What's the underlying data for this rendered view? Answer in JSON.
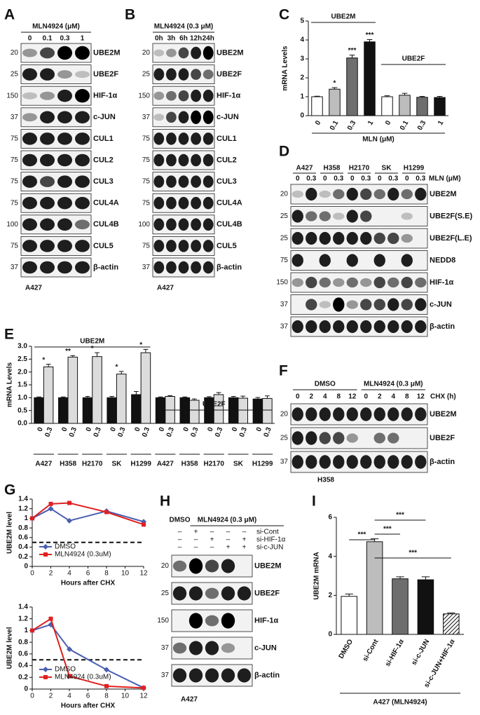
{
  "panel_labels": [
    "A",
    "B",
    "C",
    "D",
    "E",
    "F",
    "G",
    "H",
    "I"
  ],
  "blots": {
    "A": {
      "treatment": "MLN4924 (μM)",
      "lanes": [
        "0",
        "0.1",
        "0.3",
        "1"
      ],
      "cell_line": "A427",
      "rows": [
        {
          "mw": 20,
          "name": "UBE2M"
        },
        {
          "mw": 25,
          "name": "UBE2F"
        },
        {
          "mw": 150,
          "name": "HIF-1α"
        },
        {
          "mw": 37,
          "name": "c-JUN"
        },
        {
          "mw": 75,
          "name": "CUL1"
        },
        {
          "mw": 75,
          "name": "CUL2"
        },
        {
          "mw": 75,
          "name": "CUL3"
        },
        {
          "mw": 75,
          "name": "CUL4A"
        },
        {
          "mw": 100,
          "name": "CUL4B"
        },
        {
          "mw": 75,
          "name": "CUL5"
        },
        {
          "mw": 37,
          "name": "β-actin"
        }
      ]
    },
    "B": {
      "treatment": "MLN4924 (0.3 μM)",
      "lanes": [
        "0h",
        "3h",
        "6h",
        "12h",
        "24h"
      ],
      "cell_line": "A427",
      "rows": [
        {
          "mw": 20,
          "name": "UBE2M"
        },
        {
          "mw": 25,
          "name": "UBE2F"
        },
        {
          "mw": 150,
          "name": "HIF-1α"
        },
        {
          "mw": 37,
          "name": "c-JUN"
        },
        {
          "mw": 75,
          "name": "CUL1"
        },
        {
          "mw": 75,
          "name": "CUL2"
        },
        {
          "mw": 75,
          "name": "CUL3"
        },
        {
          "mw": 75,
          "name": "CUL4A"
        },
        {
          "mw": 100,
          "name": "CUL4B"
        },
        {
          "mw": 75,
          "name": "CUL5"
        },
        {
          "mw": 37,
          "name": "β-actin"
        }
      ]
    },
    "D": {
      "treatment": "MLN (μM)",
      "cell_lines": [
        "A427",
        "H358",
        "H2170",
        "SK",
        "H1299"
      ],
      "lanes": [
        "0",
        "0.3"
      ],
      "rows": [
        {
          "mw": 20,
          "name": "UBE2M"
        },
        {
          "mw": 25,
          "name": "UBE2F(S.E)"
        },
        {
          "mw": 25,
          "name": "UBE2F(L.E)"
        },
        {
          "mw": 75,
          "name": "NEDD8"
        },
        {
          "mw": 150,
          "name": "HIF-1α"
        },
        {
          "mw": 37,
          "name": "c-JUN"
        },
        {
          "mw": 37,
          "name": "β-actin"
        }
      ]
    },
    "F": {
      "groups": [
        "DMSO",
        "MLN4924 (0.3 μM)"
      ],
      "treatment": "CHX (h)",
      "lanes": [
        "0",
        "2",
        "4",
        "8",
        "12"
      ],
      "cell_line": "H358",
      "rows": [
        {
          "mw": 20,
          "name": "UBE2M"
        },
        {
          "mw": 25,
          "name": "UBE2F"
        },
        {
          "mw": 37,
          "name": "β-actin"
        }
      ]
    },
    "H": {
      "groups": [
        "DMSO",
        "MLN4924 (0.3 μM)"
      ],
      "cell_line": "A427",
      "conditions": [
        {
          "name": "si-Cont",
          "signs": [
            "–",
            "+",
            "–",
            "–",
            "–"
          ]
        },
        {
          "name": "si-HIF-1α",
          "signs": [
            "–",
            "–",
            "+",
            "–",
            "+"
          ]
        },
        {
          "name": "si-c-JUN",
          "signs": [
            "–",
            "–",
            "–",
            "+",
            "+"
          ]
        }
      ],
      "rows": [
        {
          "mw": 20,
          "name": "UBE2M"
        },
        {
          "mw": 25,
          "name": "UBE2F"
        },
        {
          "mw": 150,
          "name": "HIF-1α"
        },
        {
          "mw": 37,
          "name": "c-JUN"
        },
        {
          "mw": 37,
          "name": "β-actin"
        }
      ]
    }
  },
  "chart_data": [
    {
      "type": "bar",
      "ylabel": "mRNA Levels",
      "xlabel": "MLN (μM)",
      "categories": [
        "0",
        "0.1",
        "0.3",
        "1",
        "0",
        "0.1",
        "0.3",
        "1"
      ],
      "values": [
        1.0,
        1.4,
        3.05,
        3.9,
        1.0,
        1.08,
        0.97,
        0.96
      ],
      "errors": [
        0.03,
        0.08,
        0.15,
        0.12,
        0.05,
        0.1,
        0.05,
        0.06
      ],
      "colors": [
        "#ffffff",
        "#bdbdbd",
        "#6e6e6e",
        "#111111",
        "#ffffff",
        "#bdbdbd",
        "#6e6e6e",
        "#111111"
      ],
      "significance": [
        null,
        "*",
        "***",
        "***",
        null,
        null,
        null,
        null
      ],
      "group_labels": [
        "UBE2M",
        "UBE2F"
      ],
      "ylim": [
        0,
        5
      ],
      "yticks": [
        0,
        1,
        2,
        3,
        4,
        5
      ]
    },
    {
      "type": "bar",
      "ylabel": "mRNA Levels",
      "categories": [
        "A427",
        "H358",
        "H2170",
        "SK",
        "H1299",
        "A427",
        "H358",
        "H2170",
        "SK",
        "H1299"
      ],
      "series": [
        {
          "name": "0",
          "color": "#111111",
          "values": [
            1.0,
            1.0,
            1.0,
            1.0,
            1.12,
            1.0,
            1.0,
            1.0,
            1.0,
            0.95
          ],
          "errors": [
            0.03,
            0.03,
            0.05,
            0.05,
            0.12,
            0.03,
            0.03,
            0.04,
            0.05,
            0.06
          ]
        },
        {
          "name": "0.3",
          "color": "#dcdcdc",
          "values": [
            2.2,
            2.58,
            2.6,
            1.92,
            2.75,
            1.05,
            0.9,
            1.12,
            0.98,
            0.97
          ],
          "errors": [
            0.1,
            0.06,
            0.15,
            0.1,
            0.13,
            0.03,
            0.05,
            0.08,
            0.08,
            0.1
          ]
        }
      ],
      "significance": [
        "*",
        "**",
        "*",
        "*",
        "*",
        null,
        null,
        null,
        null,
        null
      ],
      "group_labels": [
        "UBE2M",
        "UBE2F"
      ],
      "ylim": [
        0,
        3
      ],
      "yticks": [
        {
          "value": 0,
          "label": "0.0"
        },
        {
          "value": 0.5,
          "label": "0.5"
        },
        {
          "value": 1,
          "label": "1.0"
        },
        {
          "value": 1.5,
          "label": "1.5"
        },
        {
          "value": 2,
          "label": "2.0"
        },
        {
          "value": 2.5,
          "label": "2.5"
        },
        {
          "value": 3,
          "label": "3.0"
        }
      ]
    },
    {
      "type": "line",
      "ylabel": "UBE2M level",
      "xlabel": "Hours after CHX",
      "x": [
        0,
        2,
        4,
        8,
        12
      ],
      "series": [
        {
          "name": "DMSO",
          "color": "#4a5fb0",
          "marker": "diamond",
          "values": [
            1.0,
            1.2,
            0.95,
            1.15,
            0.93
          ]
        },
        {
          "name": "MLN4924 (0.3uM)",
          "color": "#e02020",
          "marker": "square",
          "values": [
            1.0,
            1.3,
            1.32,
            1.13,
            0.87
          ]
        }
      ],
      "reference_line": 0.5,
      "legend": "lower left",
      "xlim": [
        0,
        12
      ],
      "xticks": [
        0,
        2,
        4,
        6,
        8,
        10,
        12
      ],
      "ylim": [
        0,
        1.4
      ],
      "yticks": [
        0,
        0.2,
        0.4,
        0.6,
        0.8,
        1,
        1.2,
        1.4
      ]
    },
    {
      "type": "line",
      "ylabel": "UBE2M level",
      "xlabel": "Hours after CHX",
      "x": [
        0,
        2,
        4,
        8,
        12
      ],
      "series": [
        {
          "name": "DMSO",
          "color": "#4a5fb0",
          "marker": "diamond",
          "values": [
            1.0,
            1.1,
            0.68,
            0.33,
            0.02
          ]
        },
        {
          "name": "MLN4924 (0.3uM)",
          "color": "#e02020",
          "marker": "square",
          "values": [
            1.0,
            1.2,
            0.22,
            0.05,
            0.02
          ]
        }
      ],
      "reference_line": 0.5,
      "legend": "lower left",
      "xlim": [
        0,
        12
      ],
      "xticks": [
        0,
        2,
        4,
        6,
        8,
        10,
        12
      ],
      "ylim": [
        0,
        1.4
      ],
      "yticks": [
        0,
        0.2,
        0.4,
        0.6,
        0.8,
        1,
        1.2,
        1.4
      ]
    },
    {
      "type": "bar",
      "ylabel": "UBE2M mRNA",
      "xlabel": "A427 (MLN4924)",
      "categories": [
        "DMSO",
        "si-Cont",
        "si-HIF-1α",
        "si-c-JUN",
        "si-c-JUN+HIF-1α"
      ],
      "values": [
        1.95,
        4.75,
        2.85,
        2.8,
        1.05
      ],
      "errors": [
        0.12,
        0.15,
        0.1,
        0.15,
        0.05
      ],
      "colors": [
        "#ffffff",
        "#bdbdbd",
        "#6e6e6e",
        "#111111",
        "#ffffff"
      ],
      "hatch": [
        false,
        false,
        false,
        false,
        true
      ],
      "comparisons": [
        {
          "between": [
            "si-Cont",
            "si-c-JUN"
          ],
          "label": "***"
        },
        {
          "between": [
            "si-Cont",
            "si-HIF-1α"
          ],
          "label": "***"
        },
        {
          "between": [
            "DMSO",
            "si-Cont"
          ],
          "label": "***"
        },
        {
          "between": [
            "si-Cont",
            "si-c-JUN+HIF-1α"
          ],
          "label": "***"
        }
      ],
      "ylim": [
        0,
        6
      ],
      "yticks": [
        0,
        2,
        4,
        6
      ]
    }
  ]
}
